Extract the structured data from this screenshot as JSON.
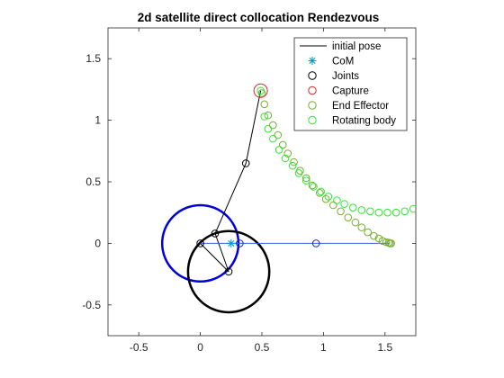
{
  "chart_data": {
    "type": "scatter",
    "title": "2d satellite direct collocation Rendezvous",
    "xlabel": "",
    "ylabel": "",
    "xlim": [
      -0.75,
      1.75
    ],
    "ylim": [
      -0.75,
      1.75
    ],
    "x_ticks": [
      -0.5,
      0,
      0.5,
      1,
      1.5
    ],
    "y_ticks": [
      -0.5,
      0,
      0.5,
      1,
      1.5
    ],
    "x_tick_labels": [
      "-0.5",
      "0",
      "0.5",
      "1",
      "1.5"
    ],
    "y_tick_labels": [
      "-0.5",
      "0",
      "0.5",
      "1",
      "1.5"
    ],
    "grid": false,
    "legend_position": "top-right",
    "legend": [
      {
        "label": "initial pose",
        "marker": "line",
        "color": "#000000"
      },
      {
        "label": "CoM",
        "marker": "asterisk",
        "color": "#00a0d0"
      },
      {
        "label": "Joints",
        "marker": "circle",
        "color": "#000000"
      },
      {
        "label": "Capture",
        "marker": "circle",
        "color": "#d62728"
      },
      {
        "label": "End Effector",
        "marker": "circle",
        "color": "#77ac30"
      },
      {
        "label": "Rotating body",
        "marker": "circle",
        "color": "#2ee82e"
      }
    ],
    "circles": [
      {
        "name": "blue body",
        "cx": 0.0,
        "cy": 0.0,
        "r": 0.31,
        "color": "#0000dd"
      },
      {
        "name": "black body",
        "cx": 0.23,
        "cy": -0.23,
        "r": 0.33,
        "color": "#000000"
      }
    ],
    "series": [
      {
        "name": "initial pose",
        "kind": "line",
        "color": "#000000",
        "x": [
          0.23,
          0.0
        ],
        "y": [
          -0.23,
          0.0
        ]
      },
      {
        "name": "initial pose",
        "kind": "line",
        "color": "#000000",
        "x": [
          0.23,
          0.12,
          0.37,
          0.49
        ],
        "y": [
          -0.23,
          0.08,
          0.65,
          1.24
        ]
      },
      {
        "name": "blue link",
        "kind": "line",
        "color": "#3a5fe0",
        "x": [
          0.0,
          1.54
        ],
        "y": [
          0.0,
          0.0
        ]
      },
      {
        "name": "CoM",
        "kind": "asterisk",
        "color": "#00a0d0",
        "x": [
          0.25
        ],
        "y": [
          0.0
        ]
      },
      {
        "name": "Joints",
        "kind": "circle",
        "color": "#000000",
        "x": [
          0.12,
          0.37,
          0.0,
          0.23
        ],
        "y": [
          0.08,
          0.65,
          0.0,
          -0.23
        ]
      },
      {
        "name": "Joints",
        "kind": "circle",
        "color": "#1a2dbb",
        "x": [
          0.32,
          0.94
        ],
        "y": [
          0.0,
          0.0
        ]
      },
      {
        "name": "Capture",
        "kind": "circle",
        "color": "#d62728",
        "x": [
          0.49
        ],
        "y": [
          1.24
        ]
      },
      {
        "name": "End Effector",
        "kind": "circle",
        "color": "#77ac30",
        "x": [
          0.5,
          0.52,
          0.55,
          0.59,
          0.63,
          0.67,
          0.71,
          0.76,
          0.81,
          0.86,
          0.91,
          0.97,
          1.02,
          1.08,
          1.14,
          1.2,
          1.26,
          1.31,
          1.36,
          1.41,
          1.45,
          1.48,
          1.51,
          1.53,
          1.54,
          1.55
        ],
        "y": [
          1.22,
          1.13,
          1.04,
          0.96,
          0.88,
          0.8,
          0.73,
          0.66,
          0.59,
          0.53,
          0.47,
          0.41,
          0.36,
          0.31,
          0.26,
          0.21,
          0.17,
          0.13,
          0.09,
          0.06,
          0.04,
          0.02,
          0.01,
          0.005,
          0.0,
          0.0
        ]
      },
      {
        "name": "Rotating body",
        "kind": "circle",
        "color": "#2ee82e",
        "x": [
          0.49,
          0.52,
          0.55,
          0.59,
          0.64,
          0.69,
          0.75,
          0.8,
          0.86,
          0.92,
          0.98,
          1.04,
          1.11,
          1.17,
          1.24,
          1.31,
          1.38,
          1.45,
          1.52,
          1.59,
          1.66,
          1.73
        ],
        "y": [
          1.24,
          1.03,
          0.93,
          0.85,
          0.76,
          0.69,
          0.63,
          0.57,
          0.51,
          0.46,
          0.42,
          0.38,
          0.35,
          0.32,
          0.29,
          0.27,
          0.26,
          0.25,
          0.25,
          0.25,
          0.26,
          0.28
        ]
      }
    ]
  }
}
